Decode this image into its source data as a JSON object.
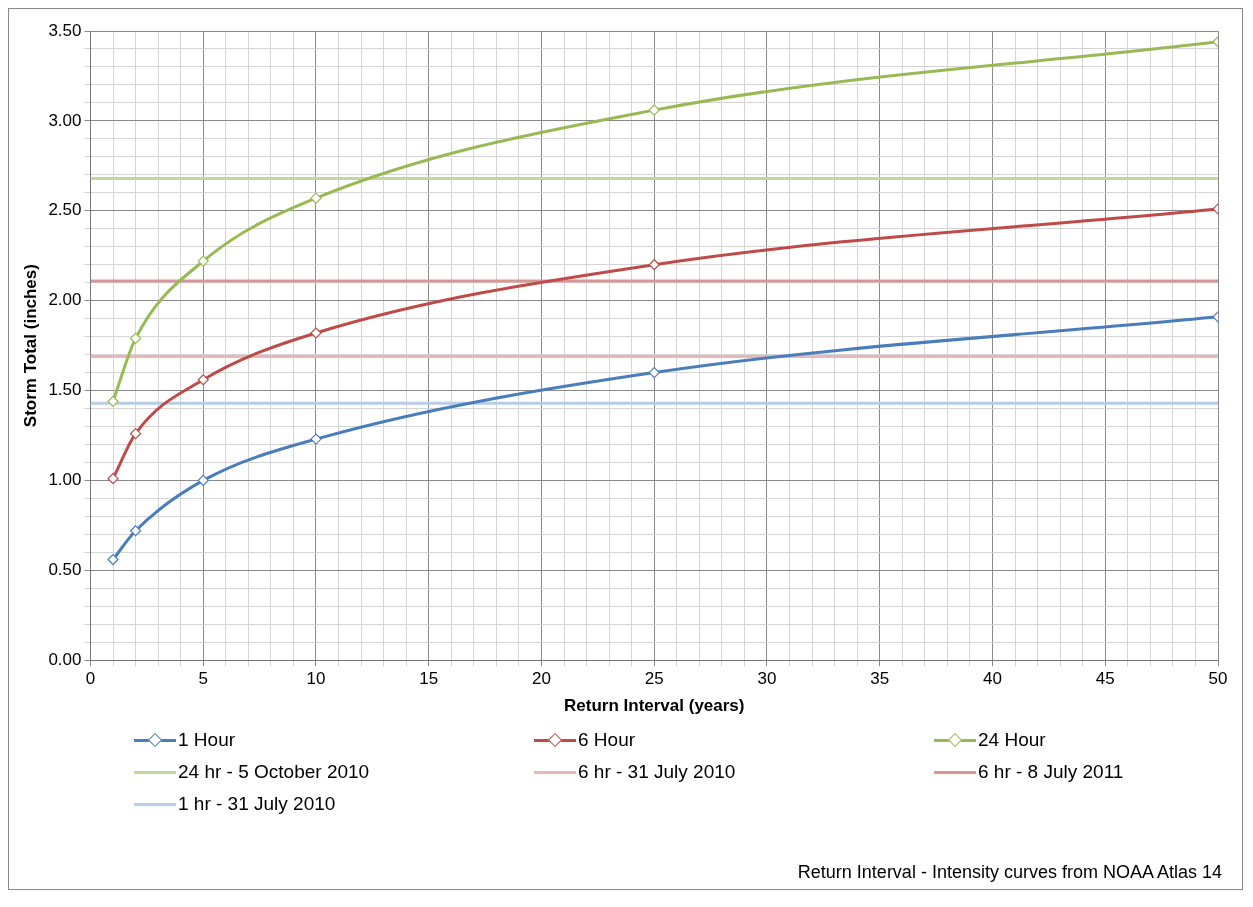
{
  "chart_data": {
    "type": "line",
    "xlabel": "Return Interval (years)",
    "ylabel": "Storm Total (inches)",
    "xlim": [
      0,
      50
    ],
    "ylim": [
      0,
      3.5
    ],
    "xticks": [
      0,
      {
        "value": 1,
        "label": null
      },
      {
        "value": 2,
        "label": null
      },
      {
        "value": 3,
        "label": null
      },
      {
        "value": 4,
        "label": null
      },
      5,
      {
        "value": 6,
        "label": null
      },
      {
        "value": 7,
        "label": null
      },
      {
        "value": 8,
        "label": null
      },
      {
        "value": 9,
        "label": null
      },
      10,
      {
        "value": 11,
        "label": null
      },
      {
        "value": 12,
        "label": null
      },
      {
        "value": 13,
        "label": null
      },
      {
        "value": 14,
        "label": null
      },
      15,
      {
        "value": 16,
        "label": null
      },
      {
        "value": 17,
        "label": null
      },
      {
        "value": 18,
        "label": null
      },
      {
        "value": 19,
        "label": null
      },
      20,
      {
        "value": 21,
        "label": null
      },
      {
        "value": 22,
        "label": null
      },
      {
        "value": 23,
        "label": null
      },
      {
        "value": 24,
        "label": null
      },
      25,
      {
        "value": 26,
        "label": null
      },
      {
        "value": 27,
        "label": null
      },
      {
        "value": 28,
        "label": null
      },
      {
        "value": 29,
        "label": null
      },
      30,
      {
        "value": 31,
        "label": null
      },
      {
        "value": 32,
        "label": null
      },
      {
        "value": 33,
        "label": null
      },
      {
        "value": 34,
        "label": null
      },
      35,
      {
        "value": 36,
        "label": null
      },
      {
        "value": 37,
        "label": null
      },
      {
        "value": 38,
        "label": null
      },
      {
        "value": 39,
        "label": null
      },
      40,
      {
        "value": 41,
        "label": null
      },
      {
        "value": 42,
        "label": null
      },
      {
        "value": 43,
        "label": null
      },
      {
        "value": 44,
        "label": null
      },
      45,
      {
        "value": 46,
        "label": null
      },
      {
        "value": 47,
        "label": null
      },
      {
        "value": 48,
        "label": null
      },
      {
        "value": 49,
        "label": null
      },
      50
    ],
    "yticks": [
      {
        "value": 0,
        "label": "0.00"
      },
      {
        "value": 0.1,
        "label": null
      },
      {
        "value": 0.2,
        "label": null
      },
      {
        "value": 0.3,
        "label": null
      },
      {
        "value": 0.4,
        "label": null
      },
      {
        "value": 0.5,
        "label": "0.50"
      },
      {
        "value": 0.6,
        "label": null
      },
      {
        "value": 0.7,
        "label": null
      },
      {
        "value": 0.8,
        "label": null
      },
      {
        "value": 0.9,
        "label": null
      },
      {
        "value": 1,
        "label": "1.00"
      },
      {
        "value": 1.1,
        "label": null
      },
      {
        "value": 1.2,
        "label": null
      },
      {
        "value": 1.3,
        "label": null
      },
      {
        "value": 1.4,
        "label": null
      },
      {
        "value": 1.5,
        "label": "1.50"
      },
      {
        "value": 1.6,
        "label": null
      },
      {
        "value": 1.7,
        "label": null
      },
      {
        "value": 1.8,
        "label": null
      },
      {
        "value": 1.9,
        "label": null
      },
      {
        "value": 2,
        "label": "2.00"
      },
      {
        "value": 2.1,
        "label": null
      },
      {
        "value": 2.2,
        "label": null
      },
      {
        "value": 2.3,
        "label": null
      },
      {
        "value": 2.4,
        "label": null
      },
      {
        "value": 2.5,
        "label": "2.50"
      },
      {
        "value": 2.6,
        "label": null
      },
      {
        "value": 2.7,
        "label": null
      },
      {
        "value": 2.8,
        "label": null
      },
      {
        "value": 2.9,
        "label": null
      },
      {
        "value": 3,
        "label": "3.00"
      },
      {
        "value": 3.1,
        "label": null
      },
      {
        "value": 3.2,
        "label": null
      },
      {
        "value": 3.3,
        "label": null
      },
      {
        "value": 3.4,
        "label": null
      },
      {
        "value": 3.5,
        "label": "3.50"
      }
    ],
    "grid": true,
    "legend": "bottom",
    "marker": "diamond",
    "annotations": [
      "Return Interval - Intensity curves from NOAA Atlas 14"
    ],
    "series": [
      {
        "name": "1 Hour",
        "color": "#4a7ebb",
        "x": [
          1,
          2,
          5,
          10,
          25,
          50
        ],
        "values": [
          0.56,
          0.72,
          1.0,
          1.23,
          1.6,
          1.91
        ]
      },
      {
        "name": "6 Hour",
        "color": "#be4b48",
        "x": [
          1,
          2,
          5,
          10,
          25,
          50
        ],
        "values": [
          1.01,
          1.26,
          1.56,
          1.82,
          2.2,
          2.51
        ]
      },
      {
        "name": "24 Hour",
        "color": "#98b954",
        "x": [
          1,
          2,
          5,
          10,
          25,
          50
        ],
        "values": [
          1.44,
          1.79,
          2.22,
          2.57,
          3.06,
          3.44
        ]
      },
      {
        "name": "24 hr - 5 October 2010",
        "color": "#c3d69b",
        "x": [
          0,
          50
        ],
        "values": [
          2.68,
          2.68
        ],
        "marker": "none"
      },
      {
        "name": "6 hr - 31 July 2010",
        "color": "#e6b9b8",
        "x": [
          0,
          50
        ],
        "values": [
          1.69,
          1.69
        ],
        "marker": "none"
      },
      {
        "name": "6 hr - 8 July 2011",
        "color": "#d99694",
        "x": [
          0,
          50
        ],
        "values": [
          2.11,
          2.11
        ],
        "marker": "none"
      },
      {
        "name": "1 hr - 31 July 2010",
        "color": "#b9cde5",
        "x": [
          0,
          50
        ],
        "values": [
          1.43,
          1.43
        ],
        "marker": "none"
      }
    ]
  }
}
